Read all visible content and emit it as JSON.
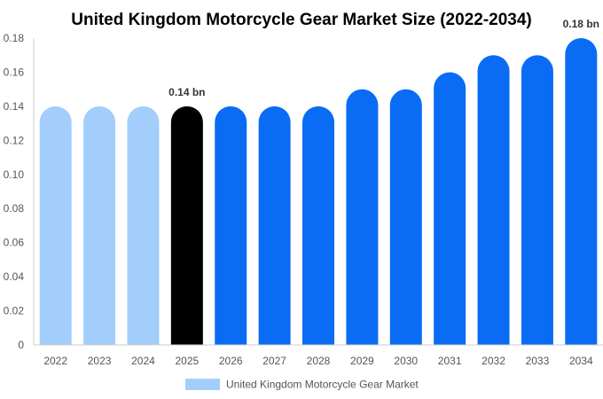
{
  "chart_data": {
    "type": "bar",
    "title": "United Kingdom Motorcycle Gear Market Size (2022-2034)",
    "categories": [
      "2022",
      "2023",
      "2024",
      "2025",
      "2026",
      "2027",
      "2028",
      "2029",
      "2030",
      "2031",
      "2032",
      "2033",
      "2034"
    ],
    "series": [
      {
        "name": "United Kingdom Motorcycle Gear Market",
        "values": [
          0.14,
          0.14,
          0.14,
          0.14,
          0.14,
          0.14,
          0.14,
          0.15,
          0.15,
          0.16,
          0.17,
          0.17,
          0.18
        ]
      }
    ],
    "bar_colors": [
      "#a3cefc",
      "#a3cefc",
      "#a3cefc",
      "#000000",
      "#0a6cf5",
      "#0a6cf5",
      "#0a6cf5",
      "#0a6cf5",
      "#0a6cf5",
      "#0a6cf5",
      "#0a6cf5",
      "#0a6cf5",
      "#0a6cf5"
    ],
    "data_labels": [
      {
        "index": 3,
        "text": "0.14 bn"
      },
      {
        "index": 12,
        "text": "0.18 bn"
      }
    ],
    "y_ticks": [
      "0",
      "0.02",
      "0.04",
      "0.06",
      "0.08",
      "0.10",
      "0.12",
      "0.14",
      "0.16",
      "0.18"
    ],
    "ylim": [
      0,
      0.18
    ],
    "xlabel": "",
    "ylabel": "",
    "grid": false,
    "legend": {
      "position": "bottom-center",
      "label": "United Kingdom Motorcycle Gear Market",
      "color": "#a3cefc"
    }
  }
}
